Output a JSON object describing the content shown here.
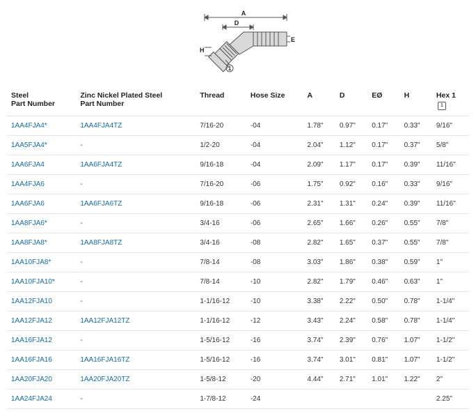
{
  "diagram": {
    "labels": {
      "A": "A",
      "D": "D",
      "E": "E",
      "H": "H",
      "note": "①"
    },
    "colors": {
      "line": "#555555",
      "fill": "#d9d9d9",
      "text": "#222222"
    }
  },
  "table": {
    "columns": [
      {
        "key": "steel",
        "label1": "Steel",
        "label2": "Part Number"
      },
      {
        "key": "zinc",
        "label1": "Zinc Nickel Plated Steel",
        "label2": "Part Number"
      },
      {
        "key": "thread",
        "label1": "Thread",
        "label2": ""
      },
      {
        "key": "hose",
        "label1": "Hose Size",
        "label2": ""
      },
      {
        "key": "A",
        "label1": "A",
        "label2": ""
      },
      {
        "key": "D",
        "label1": "D",
        "label2": ""
      },
      {
        "key": "EO",
        "label1": "EØ",
        "label2": ""
      },
      {
        "key": "H",
        "label1": "H",
        "label2": ""
      },
      {
        "key": "Hex1",
        "label1": "Hex 1",
        "label2": "",
        "icon": true
      }
    ],
    "rows": [
      {
        "steel": "1AA4FJA4*",
        "zinc": "1AA4FJA4TZ",
        "thread": "7/16-20",
        "hose": "-04",
        "A": "1.78\"",
        "D": "0.97\"",
        "EO": "0.17\"",
        "H": "0.33\"",
        "Hex1": "9/16\""
      },
      {
        "steel": "1AA5FJA4*",
        "zinc": "-",
        "thread": "1/2-20",
        "hose": "-04",
        "A": "2.04\"",
        "D": "1.12\"",
        "EO": "0.17\"",
        "H": "0.37\"",
        "Hex1": "5/8\""
      },
      {
        "steel": "1AA6FJA4",
        "zinc": "1AA6FJA4TZ",
        "thread": "9/16-18",
        "hose": "-04",
        "A": "2.09\"",
        "D": "1.17\"",
        "EO": "0.17\"",
        "H": "0.39\"",
        "Hex1": "11/16\""
      },
      {
        "steel": "1AA4FJA6",
        "zinc": "-",
        "thread": "7/16-20",
        "hose": "-06",
        "A": "1.75\"",
        "D": "0.92\"",
        "EO": "0.16\"",
        "H": "0.33\"",
        "Hex1": "9/16\""
      },
      {
        "steel": "1AA6FJA6",
        "zinc": "1AA6FJA6TZ",
        "thread": "9/16-18",
        "hose": "-06",
        "A": "2.31\"",
        "D": "1.31\"",
        "EO": "0.24\"",
        "H": "0.39\"",
        "Hex1": "11/16\""
      },
      {
        "steel": "1AA8FJA6*",
        "zinc": "-",
        "thread": "3/4-16",
        "hose": "-06",
        "A": "2.65\"",
        "D": "1.66\"",
        "EO": "0.26\"",
        "H": "0.55\"",
        "Hex1": "7/8\""
      },
      {
        "steel": "1AA8FJA8*",
        "zinc": "1AA8FJA8TZ",
        "thread": "3/4-16",
        "hose": "-08",
        "A": "2.82\"",
        "D": "1.65\"",
        "EO": "0.37\"",
        "H": "0.55\"",
        "Hex1": "7/8\""
      },
      {
        "steel": "1AA10FJA8*",
        "zinc": "-",
        "thread": "7/8-14",
        "hose": "-08",
        "A": "3.03\"",
        "D": "1.86\"",
        "EO": "0.38\"",
        "H": "0.59\"",
        "Hex1": "1\""
      },
      {
        "steel": "1AA10FJA10*",
        "zinc": "-",
        "thread": "7/8-14",
        "hose": "-10",
        "A": "2.82\"",
        "D": "1.79\"",
        "EO": "0.46\"",
        "H": "0.63\"",
        "Hex1": "1\""
      },
      {
        "steel": "1AA12FJA10",
        "zinc": "-",
        "thread": "1-1/16-12",
        "hose": "-10",
        "A": "3.38\"",
        "D": "2.22\"",
        "EO": "0.50\"",
        "H": "0.78\"",
        "Hex1": "1-1/4\""
      },
      {
        "steel": "1AA12FJA12",
        "zinc": "1AA12FJA12TZ",
        "thread": "1-1/16-12",
        "hose": "-12",
        "A": "3.43\"",
        "D": "2.24\"",
        "EO": "0.58\"",
        "H": "0.78\"",
        "Hex1": "1-1/4\""
      },
      {
        "steel": "1AA16FJA12",
        "zinc": "-",
        "thread": "1-5/16-12",
        "hose": "-16",
        "A": "3.74\"",
        "D": "2.39\"",
        "EO": "0.76\"",
        "H": "1.07\"",
        "Hex1": "1-1/2\""
      },
      {
        "steel": "1AA16FJA16",
        "zinc": "1AA16FJA16TZ",
        "thread": "1-5/16-12",
        "hose": "-16",
        "A": "3.74\"",
        "D": "3.01\"",
        "EO": "0.81\"",
        "H": "1.07\"",
        "Hex1": "1-1/2\""
      },
      {
        "steel": "1AA20FJA20",
        "zinc": "1AA20FJA20TZ",
        "thread": "1-5/8-12",
        "hose": "-20",
        "A": "4.44\"",
        "D": "2.71\"",
        "EO": "1.01\"",
        "H": "1.22\"",
        "Hex1": "2\""
      },
      {
        "steel": "1AA24FJA24",
        "zinc": "-",
        "thread": "1-7/8-12",
        "hose": "-24",
        "A": "",
        "D": "",
        "EO": "",
        "H": "",
        "Hex1": "2.25\""
      }
    ]
  }
}
